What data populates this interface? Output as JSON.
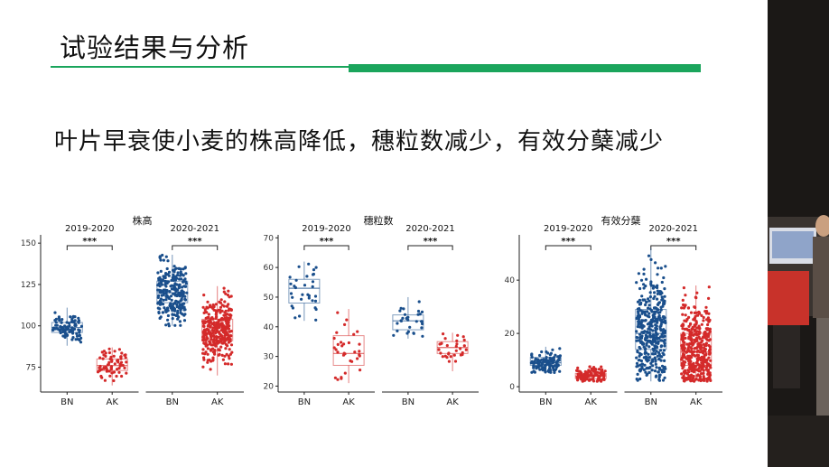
{
  "slide": {
    "title": "试验结果与分析",
    "subtitle": "叶片早衰使小麦的株高降低，穗粒数减少，有效分蘖减少",
    "accent_color": "#1aa55c"
  },
  "colors": {
    "BN": "#1a4f8c",
    "AK": "#d42a2a"
  },
  "chart_data": [
    {
      "type": "box",
      "title": "株高",
      "facets": [
        "2019-2020",
        "2020-2021"
      ],
      "categories": [
        "BN",
        "AK"
      ],
      "yticks": [
        75,
        100,
        125,
        150
      ],
      "ylim": [
        60,
        155
      ],
      "significance": "***",
      "series": [
        {
          "facet": "2019-2020",
          "category": "BN",
          "n": 90,
          "min": 88,
          "q1": 96,
          "median": 99,
          "q3": 102,
          "max": 111
        },
        {
          "facet": "2019-2020",
          "category": "AK",
          "n": 70,
          "min": 64,
          "q1": 73,
          "median": 76,
          "q3": 80,
          "max": 87
        },
        {
          "facet": "2020-2021",
          "category": "BN",
          "n": 240,
          "min": 100,
          "q1": 114,
          "median": 120,
          "q3": 127,
          "max": 143
        },
        {
          "facet": "2020-2021",
          "category": "AK",
          "n": 320,
          "min": 70,
          "q1": 91,
          "median": 97,
          "q3": 104,
          "max": 124
        }
      ]
    },
    {
      "type": "box",
      "title": "穗粒数",
      "facets": [
        "2019-2020",
        "2020-2021"
      ],
      "categories": [
        "BN",
        "AK"
      ],
      "yticks": [
        20,
        30,
        40,
        50,
        60,
        70
      ],
      "ylim": [
        18,
        71
      ],
      "significance": "***",
      "series": [
        {
          "facet": "2019-2020",
          "category": "BN",
          "n": 32,
          "min": 42,
          "q1": 48,
          "median": 53,
          "q3": 56,
          "max": 62
        },
        {
          "facet": "2019-2020",
          "category": "AK",
          "n": 32,
          "min": 21,
          "q1": 27,
          "median": 31,
          "q3": 37,
          "max": 46
        },
        {
          "facet": "2020-2021",
          "category": "BN",
          "n": 30,
          "min": 36,
          "q1": 39,
          "median": 42,
          "q3": 44,
          "max": 50
        },
        {
          "facet": "2020-2021",
          "category": "AK",
          "n": 30,
          "min": 25,
          "q1": 31,
          "median": 33,
          "q3": 35,
          "max": 38
        }
      ]
    },
    {
      "type": "box",
      "title": "有效分蘖",
      "facets": [
        "2019-2020",
        "2020-2021"
      ],
      "categories": [
        "BN",
        "AK"
      ],
      "yticks": [
        0,
        20,
        40
      ],
      "ylim": [
        -2,
        57
      ],
      "significance": "***",
      "series": [
        {
          "facet": "2019-2020",
          "category": "BN",
          "n": 120,
          "min": 5,
          "q1": 8,
          "median": 9,
          "q3": 11,
          "max": 15
        },
        {
          "facet": "2019-2020",
          "category": "AK",
          "n": 120,
          "min": 2,
          "q1": 3,
          "median": 4,
          "q3": 5,
          "max": 8
        },
        {
          "facet": "2020-2021",
          "category": "BN",
          "n": 380,
          "min": 2,
          "q1": 14,
          "median": 20,
          "q3": 29,
          "max": 52
        },
        {
          "facet": "2020-2021",
          "category": "AK",
          "n": 420,
          "min": 2,
          "q1": 8,
          "median": 13,
          "q3": 20,
          "max": 38
        }
      ]
    }
  ]
}
